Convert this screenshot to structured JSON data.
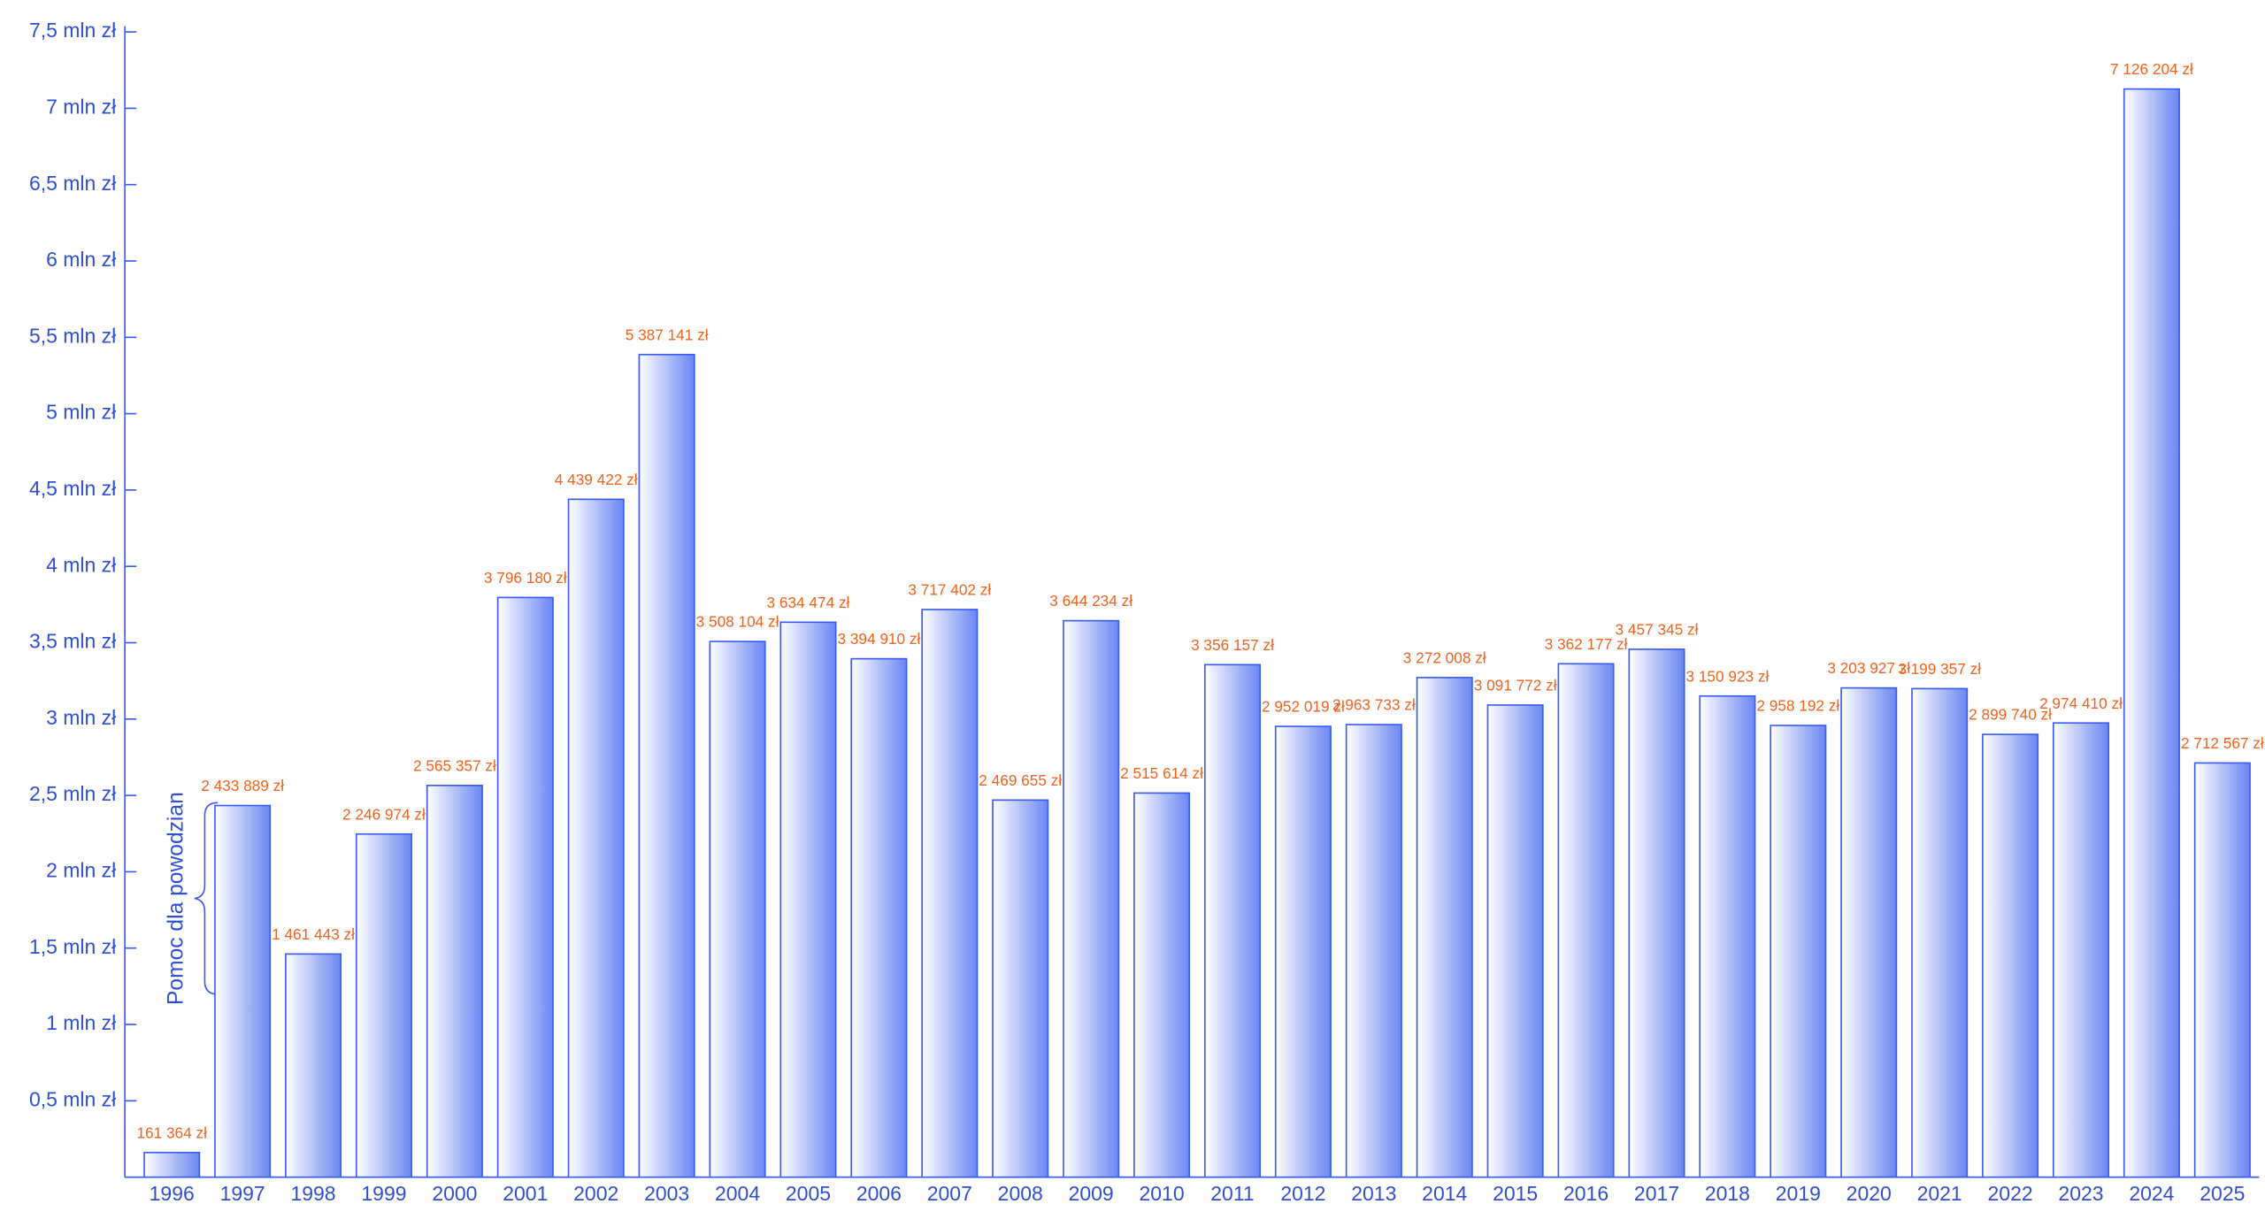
{
  "chart_data": {
    "type": "bar",
    "categories": [
      "1996",
      "1997",
      "1998",
      "1999",
      "2000",
      "2001",
      "2002",
      "2003",
      "2004",
      "2005",
      "2006",
      "2007",
      "2008",
      "2009",
      "2010",
      "2011",
      "2012",
      "2013",
      "2014",
      "2015",
      "2016",
      "2017",
      "2018",
      "2019",
      "2020",
      "2021",
      "2022",
      "2023",
      "2024",
      "2025"
    ],
    "values": [
      161364,
      2433889,
      1461443,
      2246974,
      2565357,
      3796180,
      4439422,
      5387141,
      3508104,
      3634474,
      3394910,
      3717402,
      2469655,
      3644234,
      2515614,
      3356157,
      2952019,
      2963733,
      3272008,
      3091772,
      3362177,
      3457345,
      3150923,
      2958192,
      3203927,
      3199357,
      2899740,
      2974410,
      7126204,
      2712567
    ],
    "value_labels": [
      "161 364 zł",
      "2 433 889 zł",
      "1 461 443 zł",
      "2 246 974 zł",
      "2 565 357 zł",
      "3 796 180 zł",
      "4 439 422 zł",
      "5 387 141 zł",
      "3 508 104 zł",
      "3 634 474 zł",
      "3 394 910 zł",
      "3 717 402 zł",
      "2 469 655 zł",
      "3 644 234 zł",
      "2  515  614 zł",
      "3 356 157 zł",
      "2 952 019 zł",
      "2 963 733 zł",
      "3 272 008 zł",
      "3 091 772 zł",
      "3 362 177 zł",
      "3 457 345 zł",
      "3 150 923 zł",
      "2 958 192 zł",
      "3 203 927 zł",
      "3 199 357 zł",
      "2 899 740 zł",
      "2 974 410 zł",
      "7 126 204 zł",
      "2 712 567 zł"
    ],
    "color": "#6a86f2",
    "ylim": [
      0,
      7500000
    ],
    "yticks": [
      {
        "value": 500000,
        "label": "0,5 mln zł"
      },
      {
        "value": 1000000,
        "label": "1 mln zł"
      },
      {
        "value": 1500000,
        "label": "1,5 mln zł"
      },
      {
        "value": 2000000,
        "label": "2 mln zł"
      },
      {
        "value": 2500000,
        "label": "2,5 mln zł"
      },
      {
        "value": 3000000,
        "label": "3 mln zł"
      },
      {
        "value": 3500000,
        "label": "3,5 mln zł"
      },
      {
        "value": 4000000,
        "label": "4 mln zł"
      },
      {
        "value": 4500000,
        "label": "4,5 mln zł"
      },
      {
        "value": 5000000,
        "label": "5 mln zł"
      },
      {
        "value": 5500000,
        "label": "5,5 mln zł"
      },
      {
        "value": 6000000,
        "label": "6 mln zł"
      },
      {
        "value": 6500000,
        "label": "6,5 mln zł"
      },
      {
        "value": 7000000,
        "label": "7 mln zł"
      },
      {
        "value": 7500000,
        "label": "7,5 mln zł"
      }
    ],
    "annotation": "Pomoc dla powodzian"
  }
}
